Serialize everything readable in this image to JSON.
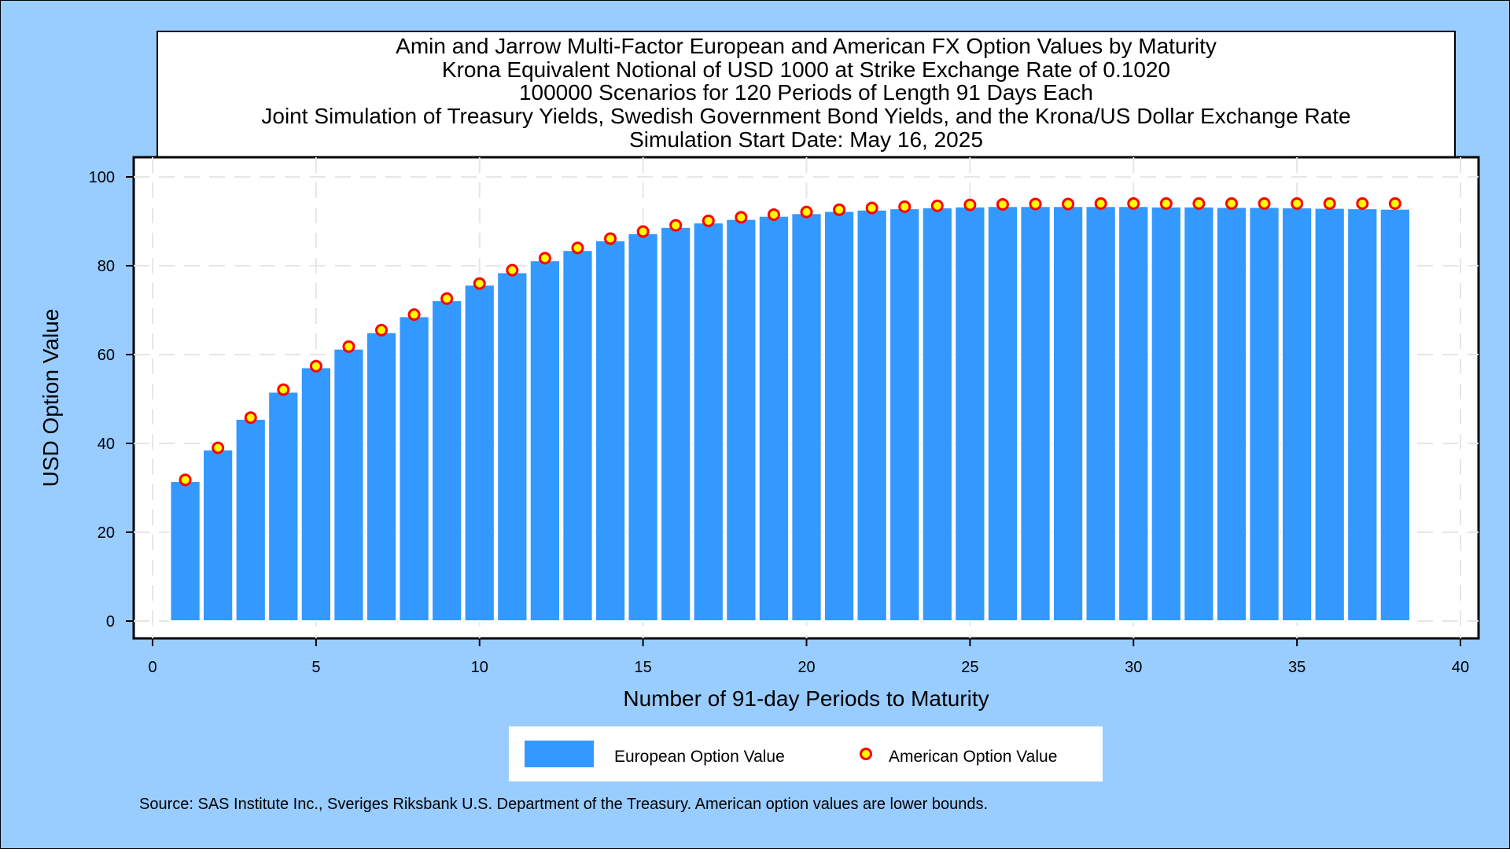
{
  "colors": {
    "background": "#99CCFF",
    "plot_background": "#FFFFFF",
    "bar_fill": "#3399FF",
    "marker_fill": "#FFFF00",
    "marker_stroke": "#FF0000"
  },
  "title_lines": [
    "Amin and Jarrow Multi-Factor European and American FX Option Values by Maturity",
    "Krona Equivalent Notional of USD 1000 at Strike Exchange Rate of  0.1020",
    "100000 Scenarios for 120 Periods of Length 91 Days Each",
    "Joint Simulation of Treasury Yields, Swedish Government Bond Yields, and the Krona/US Dollar Exchange Rate",
    "Simulation Start Date: May 16, 2025"
  ],
  "legend": {
    "european_label": "European Option Value",
    "american_label": "American Option Value"
  },
  "footnote": "Source: SAS Institute Inc., Sveriges Riksbank U.S. Department of the Treasury. American option values are lower bounds.",
  "chart_data": {
    "type": "bar",
    "xlabel": "Number of 91-day Periods to Maturity",
    "ylabel": "USD Option Value",
    "xlim": [
      0,
      40
    ],
    "ylim": [
      0,
      100
    ],
    "x_ticks": [
      "0",
      "5",
      "10",
      "15",
      "20",
      "25",
      "30",
      "35",
      "40"
    ],
    "y_ticks": [
      "0",
      "20",
      "40",
      "60",
      "80",
      "100"
    ],
    "grid": true,
    "legend_position": "bottom",
    "x": [
      1,
      2,
      3,
      4,
      5,
      6,
      7,
      8,
      9,
      10,
      11,
      12,
      13,
      14,
      15,
      16,
      17,
      18,
      19,
      20,
      21,
      22,
      23,
      24,
      25,
      26,
      27,
      28,
      29,
      30,
      31,
      32,
      33,
      34,
      35,
      36,
      37,
      38
    ],
    "series": [
      {
        "name": "European Option Value",
        "type": "bar",
        "values": [
          31.5,
          38.6,
          45.5,
          51.6,
          57.1,
          61.3,
          65.0,
          68.6,
          72.2,
          75.7,
          78.5,
          81.2,
          83.5,
          85.7,
          87.3,
          88.7,
          89.7,
          90.5,
          91.2,
          91.8,
          92.3,
          92.6,
          92.9,
          93.1,
          93.3,
          93.4,
          93.4,
          93.4,
          93.4,
          93.4,
          93.3,
          93.3,
          93.2,
          93.2,
          93.1,
          93.0,
          92.9,
          92.8
        ]
      },
      {
        "name": "American Option Value",
        "type": "scatter",
        "values": [
          31.8,
          39.0,
          45.8,
          52.1,
          57.4,
          61.8,
          65.5,
          69.0,
          72.6,
          76.0,
          79.0,
          81.7,
          84.0,
          86.1,
          87.7,
          89.1,
          90.1,
          90.9,
          91.5,
          92.1,
          92.6,
          93.0,
          93.3,
          93.5,
          93.7,
          93.8,
          93.9,
          93.9,
          94.0,
          94.0,
          94.0,
          94.0,
          94.0,
          94.0,
          94.0,
          94.0,
          94.0,
          94.0
        ]
      }
    ]
  }
}
